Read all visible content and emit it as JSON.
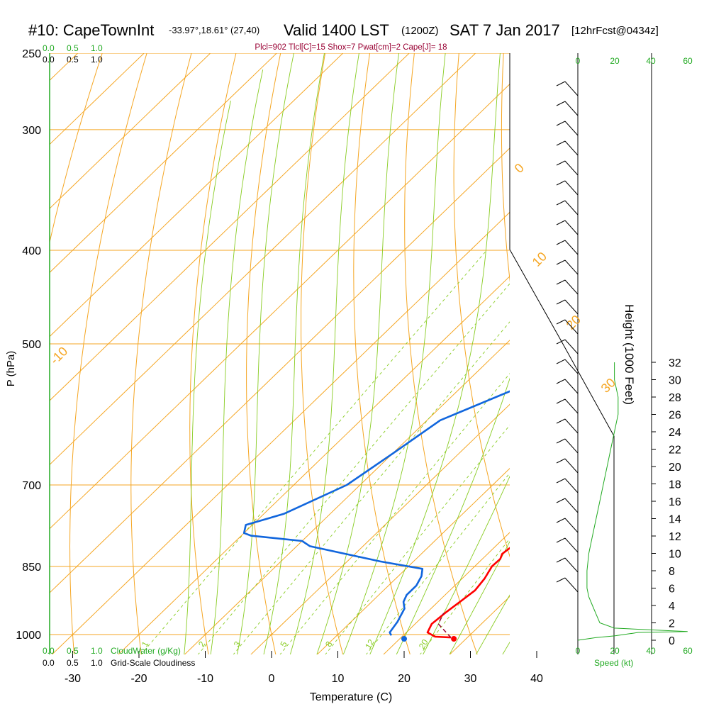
{
  "chart_data": {
    "type": "line",
    "title": {
      "station": "#10: CapeTownInt",
      "coords": "-33.97°,18.61° (27,40)",
      "valid": "Valid 1400 LST",
      "zulu": "(1200Z)",
      "date": "SAT 7 Jan 2017",
      "forecast": "[12hrFcst@0434z]"
    },
    "indices": "Plcl=902 Tlcl[C]=15 Shox=7 Pwat[cm]=2 Cape[J]= 18",
    "xlabel": "Temperature (C)",
    "ylabel": "P (hPa)",
    "right_label": "Height (1000 Feet)",
    "x_ticks": [
      "-30",
      "-20",
      "-10",
      "0",
      "10",
      "20",
      "30",
      "40"
    ],
    "x_tick_values": [
      -30,
      -20,
      -10,
      0,
      10,
      20,
      30,
      40
    ],
    "xlim": [
      -34,
      46
    ],
    "p_ticks": [
      "250",
      "300",
      "400",
      "500",
      "700",
      "850",
      "1000"
    ],
    "p_tick_values": [
      250,
      300,
      400,
      500,
      700,
      850,
      1000
    ],
    "plim": [
      250,
      1050
    ],
    "height_ticks": [
      "0",
      "2",
      "4",
      "6",
      "8",
      "10",
      "12",
      "14",
      "16",
      "18",
      "20",
      "22",
      "24",
      "26",
      "28",
      "30",
      "32"
    ],
    "isotherm_labels": [
      {
        "t": -10,
        "text": "-10"
      },
      {
        "t": 0,
        "text": "0"
      },
      {
        "t": 10,
        "text": "10"
      },
      {
        "t": 20,
        "text": "20"
      },
      {
        "t": 30,
        "text": "30"
      }
    ],
    "series": [
      {
        "key": "temperature",
        "color": "#ff0000",
        "points": [
          [
            27.5,
            1007
          ],
          [
            25,
            1005
          ],
          [
            23.2,
            995
          ],
          [
            22.5,
            975
          ],
          [
            22.8,
            950
          ],
          [
            23.3,
            925
          ],
          [
            23.8,
            900
          ],
          [
            23.4,
            875
          ],
          [
            22.6,
            850
          ],
          [
            22.7,
            835
          ],
          [
            22.2,
            825
          ],
          [
            22.5,
            810
          ],
          [
            23.3,
            800
          ],
          [
            23.2,
            775
          ],
          [
            22.6,
            750
          ],
          [
            19.8,
            700
          ],
          [
            17.6,
            650
          ],
          [
            15.8,
            600
          ],
          [
            14.5,
            550
          ],
          [
            13.6,
            520
          ],
          [
            12.2,
            480
          ],
          [
            10.7,
            440
          ],
          [
            9.5,
            410
          ],
          [
            6.9,
            370
          ],
          [
            4.5,
            340
          ],
          [
            1.5,
            310
          ],
          [
            -2,
            285
          ],
          [
            -5,
            270
          ]
        ]
      },
      {
        "key": "dewpoint",
        "color": "#1166dd",
        "points": [
          [
            18.2,
            1002
          ],
          [
            17.5,
            995
          ],
          [
            17,
            970
          ],
          [
            16,
            940
          ],
          [
            14.8,
            925
          ],
          [
            14.2,
            910
          ],
          [
            14.2,
            890
          ],
          [
            13.5,
            870
          ],
          [
            12.5,
            855
          ],
          [
            5,
            840
          ],
          [
            -8,
            810
          ],
          [
            -10,
            800
          ],
          [
            -18.5,
            790
          ],
          [
            -20,
            785
          ],
          [
            -21,
            770
          ],
          [
            -17,
            750
          ],
          [
            -12,
            700
          ],
          [
            -10,
            650
          ],
          [
            -8,
            600
          ],
          [
            -0.5,
            550
          ],
          [
            0.2,
            525
          ],
          [
            -2,
            500
          ],
          [
            -6,
            470
          ],
          [
            -10.5,
            440
          ],
          [
            -17,
            410
          ],
          [
            -23,
            380
          ],
          [
            -28.5,
            350
          ],
          [
            -30.5,
            330
          ],
          [
            -29,
            300
          ],
          [
            -30,
            270
          ]
        ]
      }
    ],
    "parcel": {
      "color": "#990033",
      "points": [
        [
          27.5,
          1007
        ],
        [
          23.5,
          975
        ],
        [
          22.6,
          950
        ]
      ]
    },
    "surface_markers": [
      {
        "key": "dewpoint",
        "t": 20,
        "p": 1007,
        "color": "#1166dd"
      },
      {
        "key": "temperature",
        "t": 27.5,
        "p": 1007,
        "color": "#ff0000"
      }
    ],
    "colors": {
      "isotherm": "#f5a623",
      "dry_adiabat": "#f5a623",
      "moist_adiabat": "#88cc22",
      "mixing_ratio": "#88cc22",
      "text_green": "#22aa22",
      "index_text": "#990033"
    },
    "top_scale_green": [
      "0.0",
      "0.5",
      "1.0"
    ],
    "top_scale_black": [
      "0.0",
      "0.5",
      "1.0"
    ],
    "bottom_scale_green": [
      "0.0",
      "0.5",
      "1.0"
    ],
    "bottom_scale_black": [
      "0.0",
      "0.5",
      "1.0"
    ],
    "cloudwater_label": "CloudWater (g/Kg)",
    "cloudiness_label": "Grid-Scale Cloudiness",
    "wind_speed_label": "Speed (kt)",
    "speed_scale": [
      "0",
      "20",
      "40",
      "60"
    ],
    "mixing_ratio_labels": [
      {
        "w": 1,
        "text": "1"
      },
      {
        "w": 2,
        "text": "2"
      },
      {
        "w": 3,
        "text": "3"
      },
      {
        "w": 5,
        "text": "5"
      },
      {
        "w": 8,
        "text": "8"
      },
      {
        "w": 12,
        "text": "12"
      },
      {
        "w": 20,
        "text": "20"
      }
    ],
    "wind_speed_profile": [
      [
        0,
        0
      ],
      [
        10,
        300
      ],
      [
        20,
        500
      ],
      [
        30,
        800
      ],
      [
        33,
        900
      ],
      [
        60,
        1000
      ],
      [
        20,
        1400
      ],
      [
        12,
        2000
      ],
      [
        10,
        3000
      ],
      [
        8,
        4000
      ],
      [
        6,
        5000
      ],
      [
        5,
        6000
      ],
      [
        5,
        8000
      ],
      [
        6,
        10000
      ],
      [
        8,
        12000
      ],
      [
        10,
        14000
      ],
      [
        12,
        16000
      ],
      [
        14,
        18000
      ],
      [
        16,
        20000
      ],
      [
        18,
        22000
      ],
      [
        20,
        24000
      ],
      [
        22,
        26000
      ],
      [
        22,
        28000
      ],
      [
        20,
        30000
      ],
      [
        20,
        32000
      ]
    ]
  }
}
